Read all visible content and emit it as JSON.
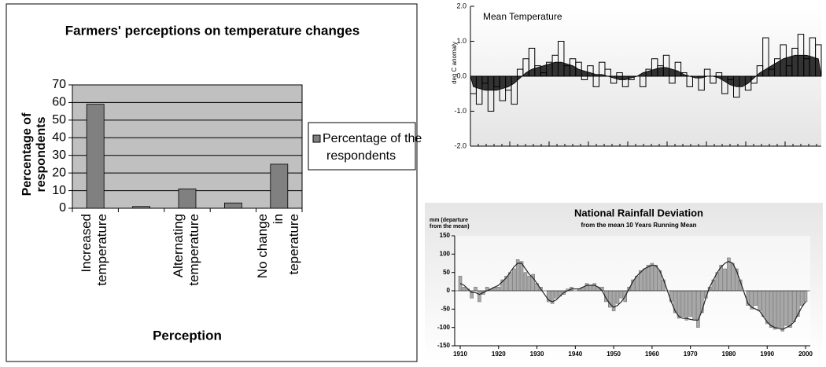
{
  "chart_data": [
    {
      "type": "bar",
      "title": "Farmers' perceptions on temperature changes",
      "y_label": "Percentage of respondents",
      "x_label": "Perception",
      "categories": [
        "Increased temperature",
        null,
        "Alternating temperature",
        null,
        "No change in teperature"
      ],
      "series": [
        {
          "name": "Percentage of the respondents",
          "color": "#808080",
          "values": [
            59,
            1,
            11,
            3,
            25
          ]
        }
      ],
      "ylim": [
        0,
        70
      ],
      "yticks": [
        0,
        10,
        20,
        30,
        40,
        50,
        60,
        70
      ],
      "grid": true,
      "legend": "right"
    },
    {
      "type": "step",
      "title": "Mean Temperature",
      "y_label": "deg C anomaly",
      "ylim": [
        -2,
        2
      ],
      "yticks": [
        {
          "value": 2,
          "label": "2.0"
        },
        {
          "value": 1,
          "label": "1.0"
        },
        {
          "value": 0,
          "label": "0.0"
        },
        {
          "value": -1,
          "label": "-1.0"
        },
        {
          "value": -2,
          "label": "-2.0"
        }
      ],
      "series": [
        {
          "color": "#ffffff",
          "values": [
            -0.5,
            -0.8,
            -0.2,
            -1.0,
            -0.3,
            -0.7,
            -0.4,
            -0.8,
            0.2,
            0.5,
            0.8,
            0.3,
            0.1,
            0.4,
            0.6,
            1.0,
            0.3,
            0.5,
            0.4,
            -0.1,
            0.3,
            -0.3,
            0.4,
            0.2,
            -0.2,
            0.1,
            -0.3,
            -0.1,
            0.0,
            -0.3,
            0.2,
            0.5,
            0.3,
            0.6,
            -0.2,
            0.4,
            0.1,
            -0.3,
            0.0,
            -0.4,
            0.2,
            -0.2,
            0.1,
            -0.5,
            -0.1,
            -0.6,
            0.0,
            -0.4,
            -0.2,
            0.3,
            1.1,
            0.2,
            0.5,
            0.9,
            0.3,
            0.8,
            1.2,
            0.5,
            1.1,
            0.9
          ]
        },
        {
          "color": "#333333",
          "values": [
            -0.3,
            -0.35,
            -0.4,
            -0.4,
            -0.4,
            -0.35,
            -0.3,
            -0.2,
            -0.05,
            0.1,
            0.2,
            0.25,
            0.3,
            0.35,
            0.4,
            0.4,
            0.35,
            0.3,
            0.2,
            0.15,
            0.1,
            0.05,
            0.05,
            0.0,
            -0.05,
            -0.1,
            -0.1,
            -0.05,
            0.0,
            0.1,
            0.15,
            0.2,
            0.25,
            0.25,
            0.2,
            0.15,
            0.05,
            0.0,
            -0.05,
            -0.05,
            0.0,
            0.0,
            -0.05,
            -0.15,
            -0.25,
            -0.3,
            -0.3,
            -0.2,
            -0.05,
            0.1,
            0.2,
            0.3,
            0.4,
            0.5,
            0.55,
            0.6,
            0.6,
            0.6,
            0.55,
            0.5
          ]
        }
      ]
    },
    {
      "type": "combo",
      "title": "National Rainfall Deviation",
      "subtitle": "from the mean 10 Years Running Mean",
      "y_label": "mm (departure from the mean)",
      "xlim": [
        1910,
        2000
      ],
      "xticks": [
        1910,
        1920,
        1930,
        1940,
        1950,
        1960,
        1970,
        1980,
        1990,
        2000
      ],
      "ylim": [
        -150,
        150
      ],
      "yticks": [
        150,
        100,
        50,
        0,
        -50,
        -100,
        -150
      ],
      "x": [
        1910,
        1911,
        1912,
        1913,
        1914,
        1915,
        1916,
        1917,
        1918,
        1919,
        1920,
        1921,
        1922,
        1923,
        1924,
        1925,
        1926,
        1927,
        1928,
        1929,
        1930,
        1931,
        1932,
        1933,
        1934,
        1935,
        1936,
        1937,
        1938,
        1939,
        1940,
        1941,
        1942,
        1943,
        1944,
        1945,
        1946,
        1947,
        1948,
        1949,
        1950,
        1951,
        1952,
        1953,
        1954,
        1955,
        1956,
        1957,
        1958,
        1959,
        1960,
        1961,
        1962,
        1963,
        1964,
        1965,
        1966,
        1967,
        1968,
        1969,
        1970,
        1971,
        1972,
        1973,
        1974,
        1975,
        1976,
        1977,
        1978,
        1979,
        1980,
        1981,
        1982,
        1983,
        1984,
        1985,
        1986,
        1987,
        1988,
        1989,
        1990,
        1991,
        1992,
        1993,
        1994,
        1995,
        1996,
        1997,
        1998,
        1999,
        2000
      ],
      "series": [
        {
          "color": "#a8a8a8",
          "values": [
            40,
            10,
            5,
            -20,
            10,
            -30,
            -10,
            10,
            5,
            10,
            10,
            30,
            40,
            50,
            60,
            85,
            80,
            50,
            40,
            45,
            20,
            10,
            0,
            -30,
            -35,
            -20,
            -15,
            -10,
            5,
            10,
            0,
            5,
            10,
            20,
            15,
            20,
            10,
            10,
            -30,
            -45,
            -55,
            -35,
            -20,
            -30,
            10,
            30,
            40,
            55,
            60,
            70,
            75,
            70,
            55,
            30,
            0,
            -30,
            -60,
            -75,
            -70,
            -80,
            -70,
            -80,
            -100,
            -60,
            -20,
            10,
            30,
            50,
            70,
            60,
            90,
            75,
            60,
            30,
            0,
            -40,
            -50,
            -40,
            -55,
            -70,
            -90,
            -100,
            -105,
            -100,
            -110,
            -95,
            -100,
            -85,
            -70,
            -40,
            -30
          ]
        },
        {
          "color": "#222222",
          "values": [
            20,
            15,
            5,
            -5,
            -5,
            -10,
            -5,
            0,
            5,
            10,
            15,
            25,
            35,
            50,
            65,
            75,
            75,
            60,
            45,
            35,
            20,
            5,
            -10,
            -25,
            -30,
            -25,
            -15,
            -5,
            0,
            5,
            5,
            5,
            10,
            15,
            15,
            15,
            10,
            0,
            -20,
            -35,
            -45,
            -40,
            -30,
            -15,
            5,
            25,
            40,
            50,
            60,
            65,
            70,
            68,
            55,
            30,
            0,
            -30,
            -55,
            -70,
            -75,
            -75,
            -78,
            -80,
            -80,
            -55,
            -20,
            10,
            30,
            50,
            65,
            75,
            80,
            75,
            55,
            25,
            -5,
            -35,
            -45,
            -50,
            -55,
            -70,
            -85,
            -95,
            -100,
            -103,
            -105,
            -100,
            -95,
            -85,
            -65,
            -45,
            -30
          ]
        }
      ]
    }
  ]
}
